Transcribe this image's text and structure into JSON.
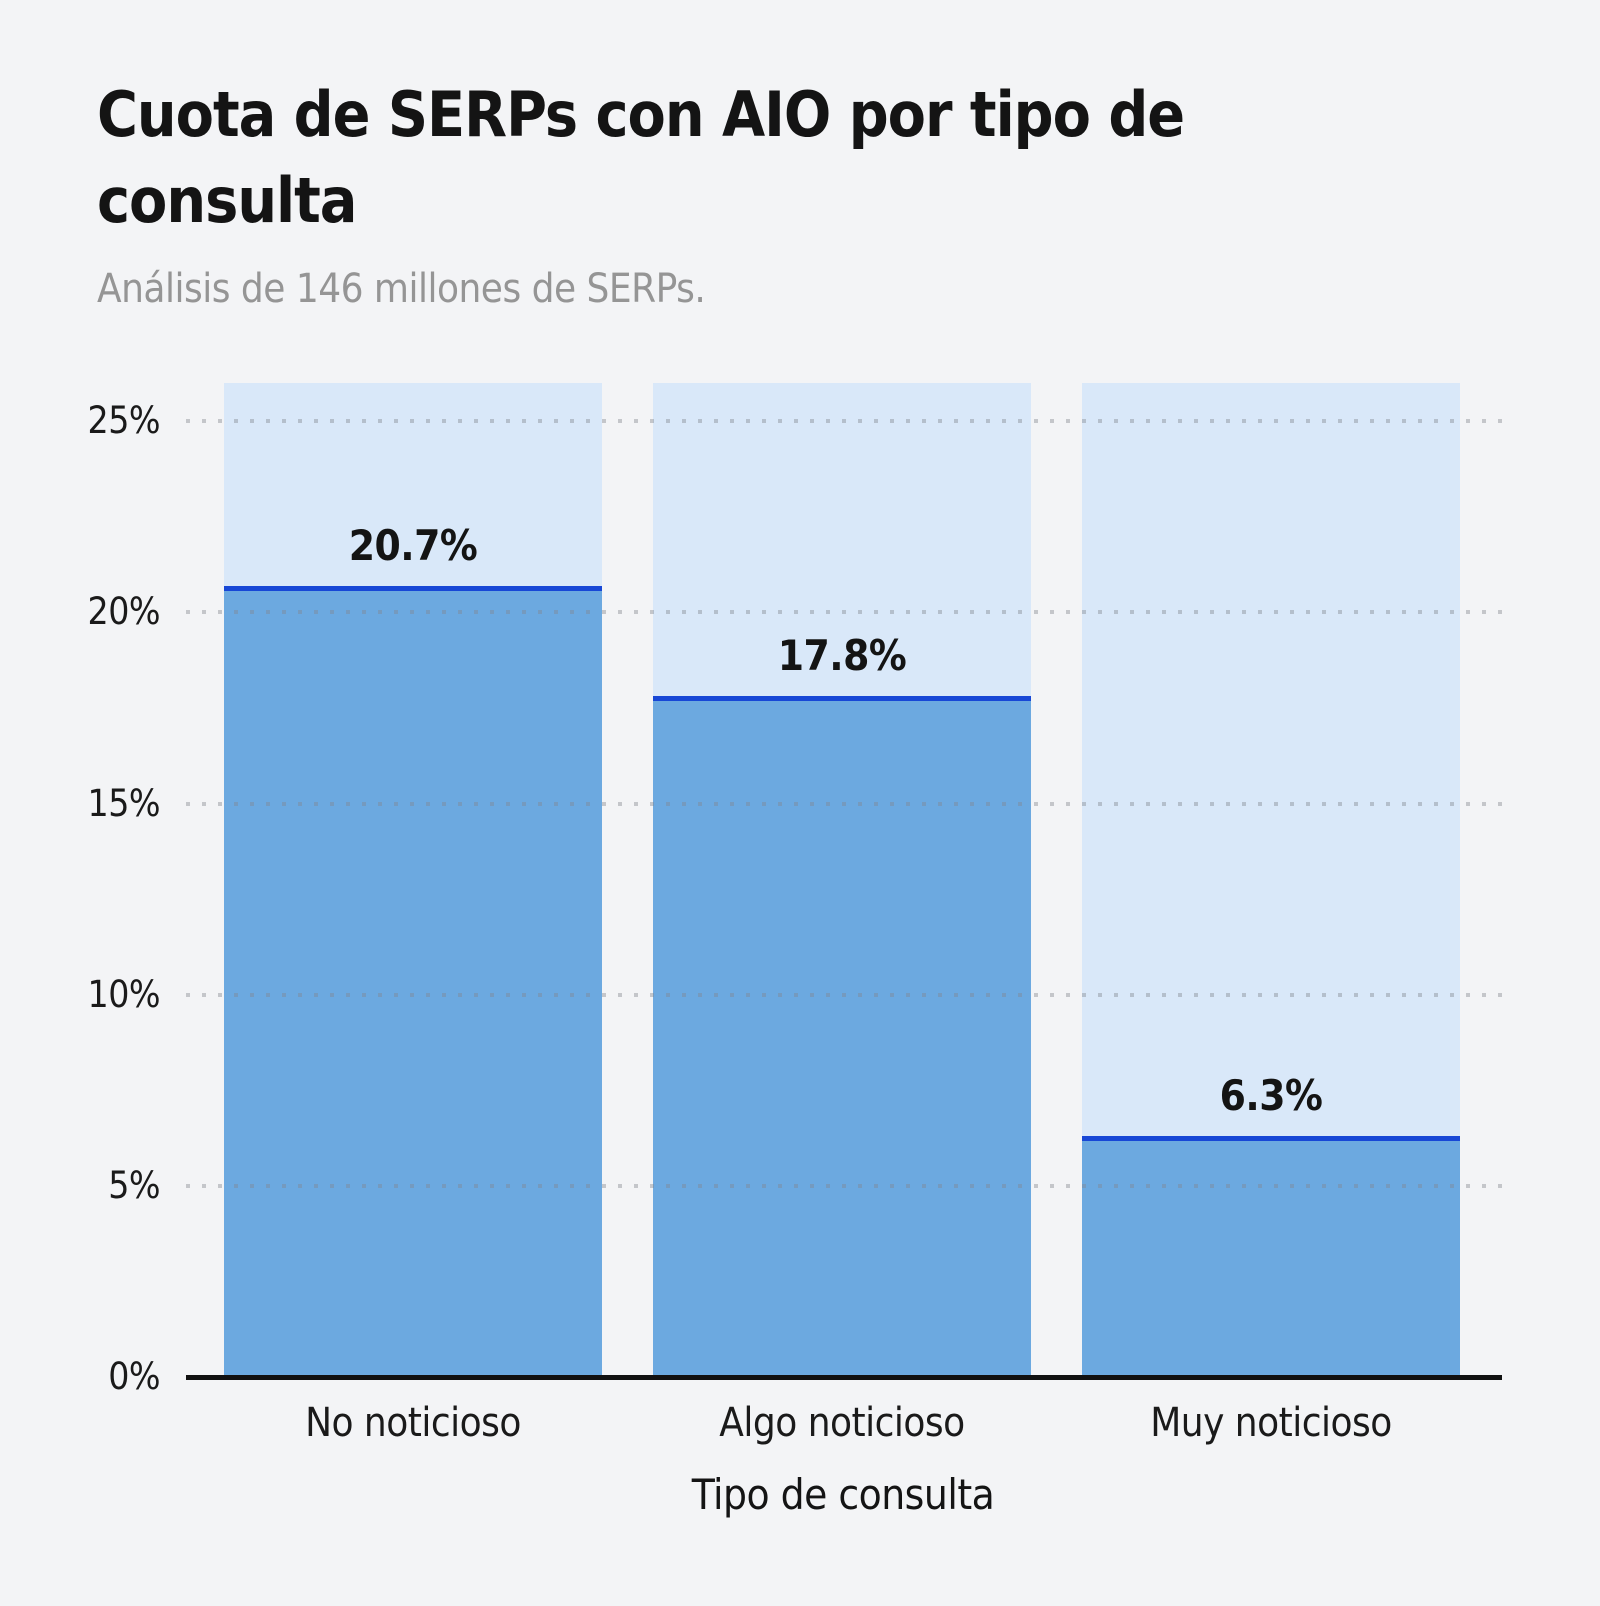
{
  "title": "Cuota de SERPs con AIO por tipo de consulta",
  "subtitle": "Análisis de 146 millones de SERPs.",
  "chart_data": {
    "type": "bar",
    "categories": [
      "No noticioso",
      "Algo noticioso",
      "Muy noticioso"
    ],
    "values": [
      20.7,
      17.8,
      6.3
    ],
    "value_labels": [
      "20.7%",
      "17.8%",
      "6.3%"
    ],
    "title": "Cuota de SERPs con AIO por tipo de consulta",
    "subtitle": "Análisis de 146 millones de SERPs.",
    "xlabel": "Tipo de consulta",
    "ylabel": "",
    "ylim": [
      0,
      26
    ],
    "yticks": [
      0,
      5,
      10,
      15,
      20,
      25
    ],
    "ytick_labels": [
      "0%",
      "5%",
      "10%",
      "15%",
      "20%",
      "25%"
    ],
    "grid": "dotted-horizontal",
    "legend": "none",
    "bar_track_max_pct": 26,
    "colors": {
      "background": "#F3F4F6",
      "bar_track": "#D9E8F9",
      "bar_fill": "#6CA9E0",
      "bar_top_line": "#1747D6",
      "gridline": "#C7C9CD",
      "axis_line": "#111111",
      "title_text": "#141414",
      "subtitle_text": "#959595",
      "value_label_text": "#141414",
      "tick_label_text": "#1A1A1A"
    }
  }
}
